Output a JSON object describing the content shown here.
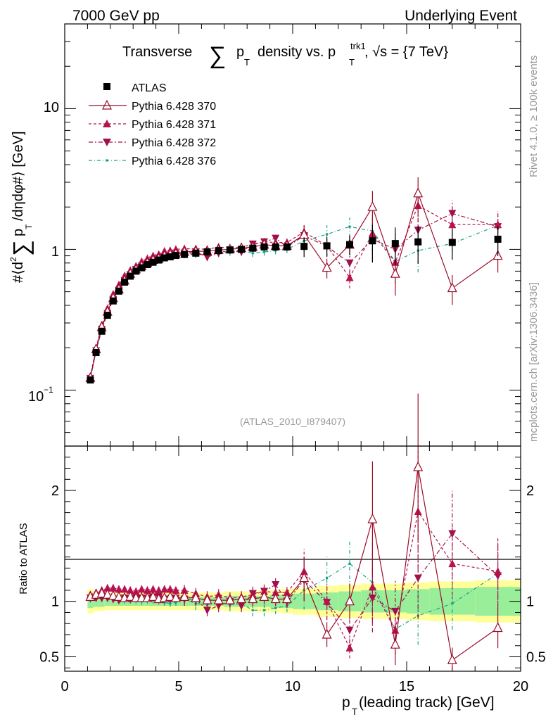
{
  "header": {
    "left": "7000 GeV pp",
    "right": "Underlying Event"
  },
  "side_text": {
    "rivet": "Rivet 4.1.0, ≥ 100k events",
    "site": "mcplots.cern.ch [arXiv:1306.3436]"
  },
  "colors": {
    "atlas": "#000000",
    "p370": "#9b0d2a",
    "p371": "#b8124f",
    "p372": "#a0104a",
    "p376": "#19a08a",
    "band_inner": "#99ee99",
    "band_outer": "#ffff99",
    "watermark": "#999999"
  },
  "chart_data": [
    {
      "type": "scatter",
      "panel": "main",
      "title_parts": {
        "pre": "Transverse",
        "sum": "∑",
        "p": "p",
        "T": "T",
        "mid": "density vs. p",
        "trk1": "trk1",
        "T2": "T",
        "post": ", √s = {7 TeV}"
      },
      "ylabel": "#⟨d²∑pₜ/dηdφ#⟩ [GeV]",
      "ylabel_parts": {
        "a": "#⟨d",
        "sup": "2",
        "sum": "∑",
        "p": "p",
        "T": "T",
        "b": "/dηdφ#⟩ [GeV]"
      },
      "yscale": "log",
      "ylim": [
        0.04,
        40
      ],
      "xlim": [
        0,
        20
      ],
      "ytick_labels": {
        "t10": "10",
        "t1": "1",
        "t01": "10⁻¹",
        "t01_base": "10",
        "t01_exp": "−1"
      },
      "watermark": "(ATLAS_2010_I879407)",
      "legend": {
        "atlas": "ATLAS",
        "p370": "Pythia 6.428 370",
        "p371": "Pythia 6.428 371",
        "p372": "Pythia 6.428 372",
        "p376": "Pythia 6.428 376"
      },
      "x": [
        1.125,
        1.375,
        1.625,
        1.875,
        2.125,
        2.375,
        2.625,
        2.875,
        3.125,
        3.375,
        3.625,
        3.875,
        4.125,
        4.375,
        4.625,
        4.875,
        5.25,
        5.75,
        6.25,
        6.75,
        7.25,
        7.75,
        8.25,
        8.75,
        9.25,
        9.75,
        10.5,
        11.5,
        12.5,
        13.5,
        14.5,
        15.5,
        17.0,
        19.0
      ],
      "series": [
        {
          "key": "atlas",
          "name": "ATLAS",
          "values": [
            0.118,
            0.185,
            0.262,
            0.34,
            0.43,
            0.505,
            0.585,
            0.645,
            0.7,
            0.74,
            0.78,
            0.81,
            0.84,
            0.87,
            0.885,
            0.905,
            0.92,
            0.94,
            0.96,
            0.98,
            0.99,
            1.0,
            1.02,
            1.04,
            1.04,
            1.04,
            1.05,
            1.06,
            1.08,
            1.15,
            1.1,
            1.13,
            1.12,
            1.18
          ]
        },
        {
          "key": "p370",
          "name": "Pythia 6.428 370",
          "values": [
            0.122,
            0.195,
            0.28,
            0.36,
            0.45,
            0.52,
            0.6,
            0.67,
            0.72,
            0.76,
            0.8,
            0.84,
            0.86,
            0.9,
            0.92,
            0.93,
            0.96,
            0.97,
            0.97,
            0.99,
            1.0,
            1.02,
            1.04,
            1.08,
            1.06,
            1.06,
            1.27,
            0.74,
            1.08,
            2.0,
            0.67,
            2.5,
            0.53,
            0.9
          ]
        },
        {
          "key": "p371",
          "name": "Pythia 6.428 371",
          "values": [
            0.125,
            0.2,
            0.29,
            0.38,
            0.48,
            0.56,
            0.65,
            0.71,
            0.76,
            0.82,
            0.86,
            0.9,
            0.92,
            0.97,
            0.98,
            1.0,
            1.01,
            1.01,
            1.0,
            1.04,
            1.02,
            1.04,
            1.08,
            1.13,
            1.12,
            1.12,
            1.33,
            1.06,
            0.63,
            1.3,
            0.81,
            2.05,
            1.5,
            1.5
          ]
        },
        {
          "key": "p372",
          "name": "Pythia 6.428 372",
          "values": [
            0.121,
            0.19,
            0.27,
            0.35,
            0.44,
            0.51,
            0.6,
            0.66,
            0.72,
            0.76,
            0.8,
            0.84,
            0.87,
            0.89,
            0.9,
            0.93,
            0.94,
            0.96,
            0.88,
            0.94,
            0.99,
            0.96,
            1.09,
            1.13,
            1.2,
            1.04,
            1.25,
            1.05,
            0.8,
            1.18,
            1.0,
            1.37,
            1.8,
            1.45
          ]
        },
        {
          "key": "p376",
          "name": "Pythia 6.428 376",
          "values": [
            0.12,
            0.19,
            0.272,
            0.35,
            0.44,
            0.51,
            0.59,
            0.65,
            0.71,
            0.74,
            0.79,
            0.82,
            0.84,
            0.86,
            0.87,
            0.9,
            0.94,
            0.92,
            0.93,
            0.97,
            0.96,
            0.98,
            0.94,
            0.96,
            0.98,
            1.0,
            1.15,
            1.28,
            1.45,
            1.35,
            0.82,
            0.98,
            1.1,
            1.48
          ]
        }
      ]
    },
    {
      "type": "line",
      "panel": "ratio",
      "ylabel": "Ratio to ATLAS",
      "ylim": [
        0.37,
        2.4
      ],
      "xlim": [
        0,
        20
      ],
      "xlabel_parts": {
        "p": "p",
        "T": "T",
        "rest": " (leading track) [GeV]"
      },
      "yticks": [
        0.5,
        1,
        2
      ],
      "ytick_labels": [
        "0.5",
        "1",
        "2"
      ],
      "xticks": [
        0,
        5,
        10,
        15,
        20
      ],
      "xtick_labels": [
        "0",
        "5",
        "10",
        "15",
        "20"
      ],
      "x": [
        1.125,
        1.375,
        1.625,
        1.875,
        2.125,
        2.375,
        2.625,
        2.875,
        3.125,
        3.375,
        3.625,
        3.875,
        4.125,
        4.375,
        4.625,
        4.875,
        5.25,
        5.75,
        6.25,
        6.75,
        7.25,
        7.75,
        8.25,
        8.75,
        9.25,
        9.75,
        10.5,
        11.5,
        12.5,
        13.5,
        14.5,
        15.5,
        17.0,
        19.0
      ],
      "x_edges": [
        1.0,
        1.25,
        1.5,
        1.75,
        2.0,
        2.25,
        2.5,
        2.75,
        3.0,
        3.25,
        3.5,
        3.75,
        4.0,
        4.25,
        4.5,
        4.75,
        5.0,
        5.5,
        6.0,
        6.5,
        7.0,
        7.5,
        8.0,
        8.5,
        9.0,
        9.5,
        10.0,
        11.0,
        12.0,
        13.0,
        14.0,
        15.0,
        16.0,
        18.0,
        20.0
      ],
      "band_inner": [
        0.06,
        0.05,
        0.05,
        0.04,
        0.04,
        0.04,
        0.04,
        0.04,
        0.04,
        0.04,
        0.04,
        0.04,
        0.04,
        0.04,
        0.04,
        0.04,
        0.04,
        0.04,
        0.04,
        0.04,
        0.05,
        0.05,
        0.05,
        0.05,
        0.06,
        0.06,
        0.07,
        0.08,
        0.09,
        0.1,
        0.1,
        0.11,
        0.12,
        0.13
      ],
      "band_outer": [
        0.11,
        0.09,
        0.09,
        0.08,
        0.08,
        0.08,
        0.08,
        0.08,
        0.08,
        0.08,
        0.08,
        0.08,
        0.08,
        0.08,
        0.08,
        0.08,
        0.08,
        0.08,
        0.08,
        0.08,
        0.09,
        0.09,
        0.09,
        0.1,
        0.1,
        0.11,
        0.12,
        0.14,
        0.15,
        0.16,
        0.16,
        0.17,
        0.18,
        0.19
      ],
      "series": [
        {
          "key": "p370",
          "name": "Pythia 6.428 370",
          "values": [
            1.04,
            1.06,
            1.07,
            1.06,
            1.05,
            1.04,
            1.03,
            1.04,
            1.03,
            1.03,
            1.03,
            1.04,
            1.02,
            1.03,
            1.04,
            1.03,
            1.04,
            1.03,
            1.01,
            1.01,
            1.01,
            1.02,
            1.02,
            1.04,
            1.02,
            1.02,
            1.21,
            0.7,
            1.0,
            1.74,
            0.61,
            2.21,
            0.47,
            0.76
          ]
        },
        {
          "key": "p371",
          "name": "Pythia 6.428 371",
          "values": [
            1.06,
            1.08,
            1.1,
            1.12,
            1.12,
            1.11,
            1.11,
            1.1,
            1.09,
            1.11,
            1.1,
            1.11,
            1.1,
            1.11,
            1.11,
            1.1,
            1.1,
            1.07,
            1.04,
            1.06,
            1.03,
            1.04,
            1.06,
            1.09,
            1.08,
            1.08,
            1.27,
            1.0,
            0.58,
            1.13,
            0.74,
            1.81,
            1.34,
            1.27
          ]
        },
        {
          "key": "p372",
          "name": "Pythia 6.428 372",
          "values": [
            1.03,
            1.03,
            1.03,
            1.03,
            1.02,
            1.01,
            1.03,
            1.02,
            1.03,
            1.03,
            1.03,
            1.04,
            1.04,
            1.02,
            1.02,
            1.03,
            1.02,
            1.02,
            0.92,
            0.96,
            1.0,
            0.96,
            1.07,
            1.09,
            1.15,
            1.0,
            1.19,
            0.99,
            0.74,
            1.03,
            0.91,
            1.21,
            1.61,
            1.23
          ]
        },
        {
          "key": "p376",
          "name": "Pythia 6.428 376",
          "values": [
            1.02,
            1.03,
            1.04,
            1.03,
            1.02,
            1.01,
            1.01,
            1.01,
            1.01,
            1.0,
            1.01,
            1.01,
            1.0,
            0.99,
            0.98,
            0.99,
            1.02,
            0.98,
            0.97,
            0.99,
            0.97,
            0.98,
            0.92,
            0.92,
            0.94,
            0.96,
            1.1,
            1.21,
            1.34,
            1.17,
            0.75,
            0.87,
            0.98,
            1.25
          ]
        }
      ]
    }
  ]
}
